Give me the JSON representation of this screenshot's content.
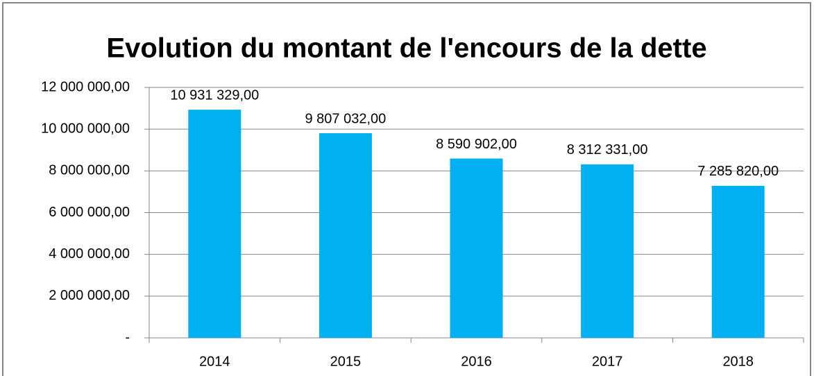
{
  "chart_data": {
    "type": "bar",
    "title": "Evolution du montant de l'encours de la dette",
    "categories": [
      "2014",
      "2015",
      "2016",
      "2017",
      "2018"
    ],
    "values": [
      10931329,
      9807032,
      8590902,
      8312331,
      7285820
    ],
    "value_labels": [
      "10 931 329,00",
      "9 807 032,00",
      "8 590 902,00",
      "8 312 331,00",
      "7 285 820,00"
    ],
    "color": "#00b0f0",
    "ylim": [
      0,
      12000000
    ],
    "yticks": [
      {
        "value": 0,
        "label": "-"
      },
      {
        "value": 2000000,
        "label": "2 000 000,00"
      },
      {
        "value": 4000000,
        "label": "4 000 000,00"
      },
      {
        "value": 6000000,
        "label": "6 000 000,00"
      },
      {
        "value": 8000000,
        "label": "8 000 000,00"
      },
      {
        "value": 10000000,
        "label": "10 000 000,00"
      },
      {
        "value": 12000000,
        "label": "12 000 000,00"
      }
    ],
    "grid": true
  }
}
